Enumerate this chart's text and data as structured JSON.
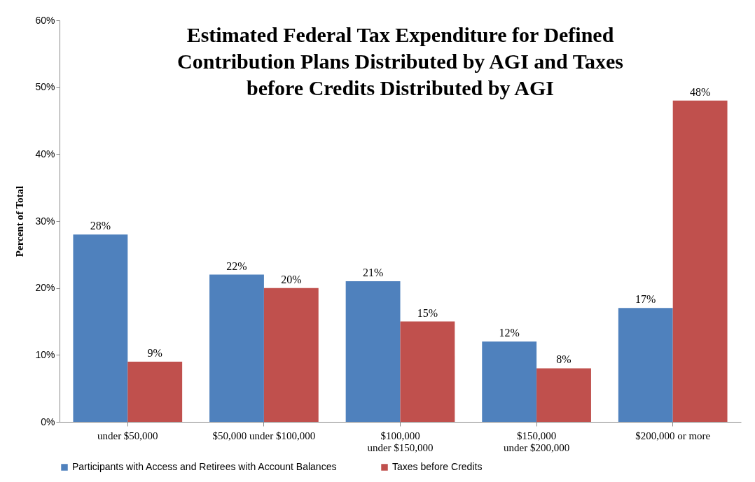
{
  "chart_data": {
    "type": "bar",
    "title": "Estimated Federal Tax Expenditure for Defined Contribution Plans Distributed by AGI and Taxes before Credits Distributed by AGI",
    "ylabel": "Percent of Total",
    "categories": [
      "under $50,000",
      "$50,000 under $100,000",
      "$100,000 under $150,000",
      "$150,000 under $200,000",
      "$200,000 or more"
    ],
    "series": [
      {
        "name": "Participants with Access and Retirees with Account Balances",
        "color": "#4f81bd",
        "values": [
          28,
          22,
          21,
          12,
          17
        ],
        "value_labels": [
          "28%",
          "22%",
          "21%",
          "12%",
          "17%"
        ]
      },
      {
        "name": "Taxes before Credits",
        "color": "#c0504d",
        "values": [
          9,
          20,
          15,
          8,
          48
        ],
        "value_labels": [
          "9%",
          "20%",
          "15%",
          "8%",
          "48%"
        ]
      }
    ],
    "ylim": [
      0,
      60
    ],
    "yticks": [
      {
        "value": 0,
        "label": "0%"
      },
      {
        "value": 10,
        "label": "10%"
      },
      {
        "value": 20,
        "label": "20%"
      },
      {
        "value": 30,
        "label": "30%"
      },
      {
        "value": 40,
        "label": "40%"
      },
      {
        "value": 50,
        "label": "50%"
      },
      {
        "value": 60,
        "label": "60%"
      }
    ],
    "grid": false,
    "legend": "bottom"
  }
}
